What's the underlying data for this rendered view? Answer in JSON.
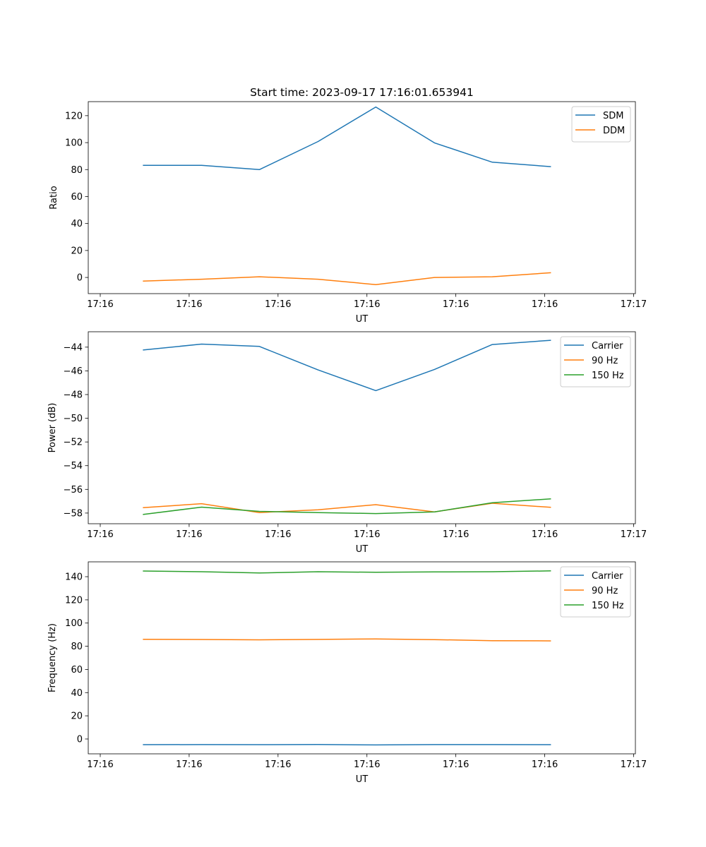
{
  "chart_data": [
    {
      "type": "line",
      "title": "Start time: 2023-09-17 17:16:01.653941",
      "xlabel": "UT",
      "ylabel": "Ratio",
      "x": [
        4.8,
        11.4,
        17.9,
        24.5,
        31.0,
        37.6,
        44.1,
        50.7
      ],
      "xlim": [
        -1.35,
        60.2
      ],
      "xticks": [
        0,
        10,
        20,
        30,
        40,
        50,
        60
      ],
      "xtick_labels": [
        "17:16",
        "17:16",
        "17:16",
        "17:16",
        "17:16",
        "17:16",
        "17:17"
      ],
      "ylim": [
        -12,
        130.4
      ],
      "yticks": [
        0,
        20,
        40,
        60,
        80,
        100,
        120
      ],
      "ytick_labels": [
        "0",
        "20",
        "40",
        "60",
        "80",
        "100",
        "120"
      ],
      "legend": "top-right",
      "grid": false,
      "series": [
        {
          "name": "SDM",
          "color": "#1f77b4",
          "values": [
            83.2,
            83.1,
            80.0,
            100.8,
            126.4,
            99.8,
            85.5,
            82.2
          ]
        },
        {
          "name": "DDM",
          "color": "#ff7f0e",
          "values": [
            -2.7,
            -1.3,
            0.5,
            -1.3,
            -5.3,
            0.0,
            0.5,
            3.5
          ]
        }
      ]
    },
    {
      "type": "line",
      "xlabel": "UT",
      "ylabel": "Power (dB)",
      "x": [
        4.8,
        11.4,
        17.9,
        24.5,
        31.0,
        37.6,
        44.1,
        50.7
      ],
      "xlim": [
        -1.35,
        60.2
      ],
      "xticks": [
        0,
        10,
        20,
        30,
        40,
        50,
        60
      ],
      "xtick_labels": [
        "17:16",
        "17:16",
        "17:16",
        "17:16",
        "17:16",
        "17:16",
        "17:17"
      ],
      "ylim": [
        -58.9,
        -42.7
      ],
      "yticks": [
        -58,
        -56,
        -54,
        -52,
        -50,
        -48,
        -46,
        -44
      ],
      "ytick_labels": [
        "−58",
        "−56",
        "−54",
        "−52",
        "−50",
        "−48",
        "−46",
        "−44"
      ],
      "legend": "top-right",
      "grid": false,
      "series": [
        {
          "name": "Carrier",
          "color": "#1f77b4",
          "values": [
            -44.24,
            -43.74,
            -43.94,
            -45.92,
            -47.67,
            -45.88,
            -43.78,
            -43.42
          ]
        },
        {
          "name": "90 Hz",
          "color": "#ff7f0e",
          "values": [
            -57.55,
            -57.21,
            -57.96,
            -57.72,
            -57.29,
            -57.9,
            -57.17,
            -57.52
          ]
        },
        {
          "name": "150 Hz",
          "color": "#2ca02c",
          "values": [
            -58.12,
            -57.5,
            -57.86,
            -57.96,
            -58.04,
            -57.9,
            -57.13,
            -56.8
          ]
        }
      ]
    },
    {
      "type": "line",
      "xlabel": "UT",
      "ylabel": "Frequency (Hz)",
      "x": [
        4.8,
        11.4,
        17.9,
        24.5,
        31.0,
        37.6,
        44.1,
        50.7
      ],
      "xlim": [
        -1.35,
        60.2
      ],
      "xticks": [
        0,
        10,
        20,
        30,
        40,
        50,
        60
      ],
      "xtick_labels": [
        "17:16",
        "17:16",
        "17:16",
        "17:16",
        "17:16",
        "17:16",
        "17:17"
      ],
      "ylim": [
        -12.8,
        152.8
      ],
      "yticks": [
        0,
        20,
        40,
        60,
        80,
        100,
        120,
        140
      ],
      "ytick_labels": [
        "0",
        "20",
        "40",
        "60",
        "80",
        "100",
        "120",
        "140"
      ],
      "legend": "top-right",
      "grid": false,
      "series": [
        {
          "name": "Carrier",
          "color": "#1f77b4",
          "values": [
            -4.9,
            -4.8,
            -4.9,
            -4.7,
            -5.1,
            -4.8,
            -4.8,
            -4.9
          ]
        },
        {
          "name": "90 Hz",
          "color": "#ff7f0e",
          "values": [
            86.0,
            85.8,
            85.5,
            85.9,
            86.3,
            85.7,
            84.8,
            84.6
          ]
        },
        {
          "name": "150 Hz",
          "color": "#2ca02c",
          "values": [
            144.9,
            144.3,
            143.2,
            144.3,
            143.8,
            144.1,
            144.3,
            145.0
          ]
        }
      ]
    }
  ]
}
